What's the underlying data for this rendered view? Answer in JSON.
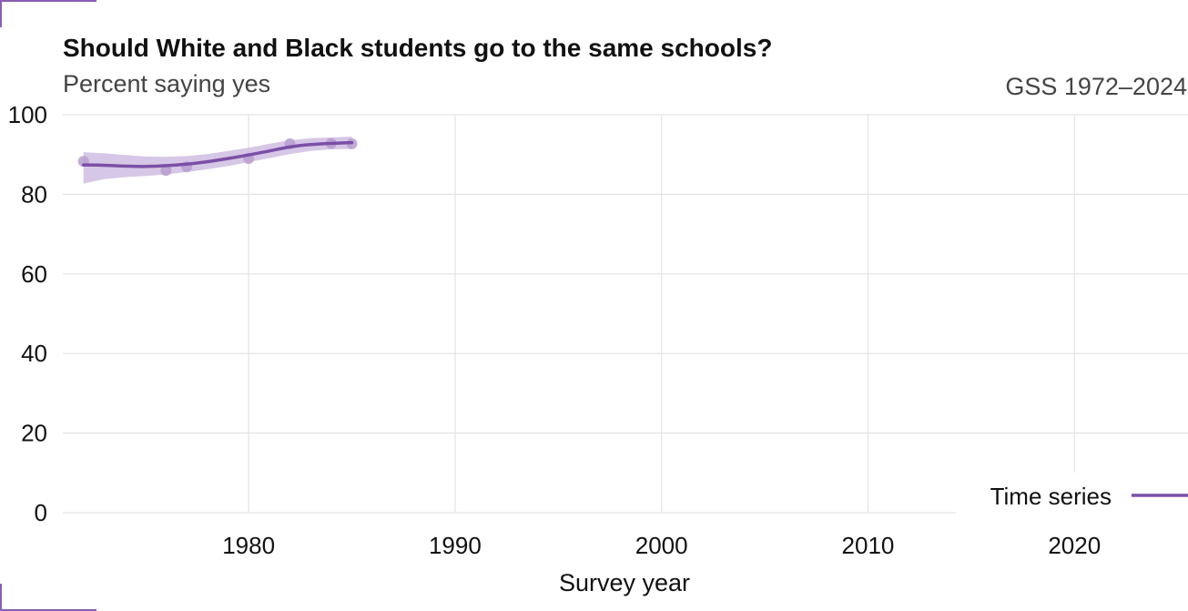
{
  "chart_data": {
    "type": "line",
    "title": "Should White and Black students go to the same schools?",
    "subtitle": "Percent saying yes",
    "caption": "GSS 1972–2024",
    "xlabel": "Survey year",
    "ylabel": "",
    "xlim": [
      1971,
      2025.5
    ],
    "ylim": [
      0,
      100
    ],
    "x_ticks": [
      1980,
      1990,
      2000,
      2010,
      2020
    ],
    "y_ticks": [
      0,
      20,
      40,
      60,
      80,
      100
    ],
    "grid": true,
    "legend": {
      "placement": "bottom-right",
      "entries": [
        "Time series"
      ]
    },
    "colors": {
      "series": "#7b4fa6",
      "band": "#c9b4de",
      "points": "#b89fcf",
      "corner": "#8a5db8"
    },
    "series": [
      {
        "name": "Time series",
        "points": [
          {
            "x": 1972,
            "y": 88.3
          },
          {
            "x": 1976,
            "y": 86.0
          },
          {
            "x": 1977,
            "y": 86.9
          },
          {
            "x": 1980,
            "y": 89.0
          },
          {
            "x": 1982,
            "y": 92.7
          },
          {
            "x": 1984,
            "y": 92.8
          },
          {
            "x": 1985,
            "y": 92.7
          }
        ],
        "smooth": [
          {
            "x": 1972,
            "y": 87.4,
            "lo": 82.7,
            "hi": 90.6
          },
          {
            "x": 1973,
            "y": 87.3,
            "lo": 83.8,
            "hi": 90.3
          },
          {
            "x": 1974,
            "y": 87.1,
            "lo": 84.3,
            "hi": 89.9
          },
          {
            "x": 1975,
            "y": 87.0,
            "lo": 84.6,
            "hi": 89.5
          },
          {
            "x": 1976,
            "y": 87.2,
            "lo": 85.0,
            "hi": 89.4
          },
          {
            "x": 1977,
            "y": 87.6,
            "lo": 85.6,
            "hi": 89.6
          },
          {
            "x": 1978,
            "y": 88.2,
            "lo": 86.3,
            "hi": 90.1
          },
          {
            "x": 1979,
            "y": 89.0,
            "lo": 87.1,
            "hi": 90.9
          },
          {
            "x": 1980,
            "y": 89.9,
            "lo": 88.1,
            "hi": 91.7
          },
          {
            "x": 1981,
            "y": 90.9,
            "lo": 89.1,
            "hi": 92.7
          },
          {
            "x": 1982,
            "y": 91.9,
            "lo": 90.1,
            "hi": 93.6
          },
          {
            "x": 1983,
            "y": 92.5,
            "lo": 90.9,
            "hi": 94.1
          },
          {
            "x": 1984,
            "y": 92.8,
            "lo": 91.3,
            "hi": 94.3
          },
          {
            "x": 1985,
            "y": 93.0,
            "lo": 91.4,
            "hi": 94.5
          }
        ]
      }
    ]
  }
}
